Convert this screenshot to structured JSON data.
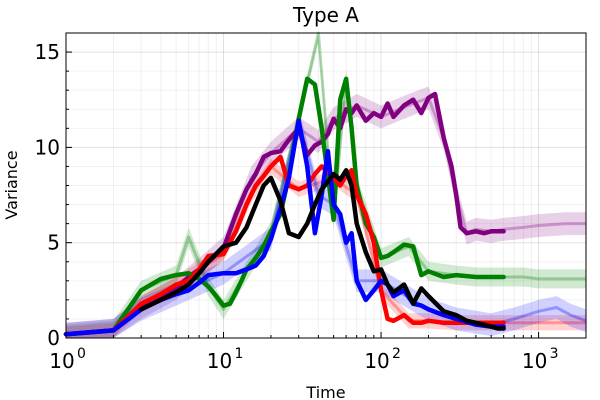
{
  "chart_data": {
    "type": "line",
    "title": "Type A",
    "xlabel": "Time",
    "ylabel": "Variance",
    "x_scale": "log10",
    "xlim": [
      1,
      2000
    ],
    "ylim": [
      0,
      16
    ],
    "x_ticks": [
      {
        "value": 1,
        "base": "10",
        "exp": "0"
      },
      {
        "value": 10,
        "base": "10",
        "exp": "1"
      },
      {
        "value": 100,
        "base": "10",
        "exp": "2"
      },
      {
        "value": 1000,
        "base": "10",
        "exp": "3"
      }
    ],
    "y_ticks": [
      0,
      5,
      10,
      15
    ],
    "grid": true,
    "series": [
      {
        "color": "#800080",
        "x": [
          1,
          2,
          3,
          4,
          5,
          6,
          7,
          8,
          10,
          12,
          14,
          16,
          18,
          20,
          23,
          26,
          30,
          34,
          38,
          42,
          46,
          50,
          55,
          60,
          65,
          70,
          80,
          90,
          100,
          110,
          120,
          140,
          160,
          180,
          200,
          220,
          250,
          280,
          300,
          320,
          350,
          400,
          450,
          500,
          600
        ],
        "y": [
          0.2,
          0.4,
          1.6,
          2.2,
          2.6,
          3.2,
          3.6,
          4.0,
          4.7,
          6.5,
          7.8,
          8.6,
          9.5,
          9.7,
          9.8,
          10.4,
          11.0,
          9.6,
          10.1,
          10.3,
          10.7,
          11.5,
          11.0,
          12.0,
          11.8,
          12.2,
          11.4,
          11.8,
          11.6,
          12.3,
          11.6,
          12.2,
          12.5,
          11.8,
          12.6,
          12.8,
          10.5,
          9.0,
          7.5,
          5.8,
          5.5,
          5.6,
          5.5,
          5.6,
          5.6
        ],
        "band": {
          "x": [
            1,
            2,
            3,
            5,
            7,
            10,
            15,
            20,
            30,
            40,
            50,
            70,
            100,
            150,
            200,
            250,
            300,
            350,
            400,
            500,
            600,
            800,
            1000,
            1500,
            2000
          ],
          "y": [
            0.2,
            0.4,
            1.6,
            2.6,
            3.6,
            4.7,
            8.4,
            9.7,
            11.0,
            10.3,
            11.5,
            12.2,
            11.6,
            12.2,
            12.6,
            10.5,
            7.5,
            5.5,
            5.7,
            5.6,
            5.7,
            5.8,
            5.9,
            6.0,
            6.0
          ],
          "spread": 0.6
        }
      },
      {
        "color": "#008000",
        "x": [
          1,
          2,
          3,
          4,
          5,
          6,
          7,
          8,
          9,
          10,
          11,
          12,
          13,
          14,
          15,
          16,
          18,
          20,
          23,
          26,
          30,
          34,
          38,
          42,
          46,
          50,
          55,
          60,
          65,
          70,
          80,
          90,
          100,
          110,
          120,
          140,
          160,
          180,
          200,
          250,
          300,
          400,
          500,
          600
        ],
        "y": [
          0.2,
          0.4,
          2.5,
          3.1,
          3.3,
          3.4,
          3.1,
          2.7,
          2.2,
          1.7,
          1.8,
          2.4,
          3.0,
          3.6,
          3.9,
          4.2,
          4.8,
          5.6,
          6.5,
          8.5,
          11.5,
          13.6,
          13.3,
          11.0,
          8.5,
          6.2,
          12.5,
          13.6,
          11.0,
          8.0,
          6.0,
          5.3,
          4.2,
          4.3,
          4.5,
          4.9,
          4.8,
          3.3,
          3.5,
          3.2,
          3.3,
          3.2,
          3.2,
          3.2
        ],
        "band": {
          "x": [
            1,
            2,
            3,
            5,
            6,
            8,
            10,
            15,
            20,
            30,
            40,
            50,
            60,
            70,
            100,
            150,
            200,
            300,
            400,
            500,
            600,
            800,
            1000,
            1500,
            2000
          ],
          "y": [
            0.2,
            0.4,
            2.5,
            3.3,
            5.3,
            2.7,
            1.5,
            3.9,
            5.6,
            11.5,
            16.0,
            6.2,
            13.6,
            8.0,
            4.2,
            4.8,
            3.5,
            3.3,
            3.2,
            3.2,
            3.2,
            3.2,
            3.1,
            3.1,
            3.1
          ],
          "spread": 0.5
        }
      },
      {
        "color": "#ff0000",
        "x": [
          1,
          2,
          3,
          4,
          5,
          6,
          7,
          8,
          10,
          12,
          14,
          16,
          18,
          20,
          23,
          26,
          30,
          34,
          38,
          42,
          46,
          50,
          55,
          60,
          65,
          70,
          80,
          90,
          100,
          110,
          120,
          140,
          160,
          180,
          200,
          250,
          300,
          400,
          500,
          600
        ],
        "y": [
          0.2,
          0.4,
          1.8,
          2.3,
          2.8,
          3.0,
          3.6,
          4.3,
          4.4,
          5.6,
          7.0,
          8.0,
          8.5,
          9.0,
          9.5,
          8.0,
          7.8,
          8.0,
          8.6,
          9.0,
          8.7,
          8.4,
          8.0,
          8.5,
          8.8,
          7.5,
          6.5,
          5.0,
          2.5,
          1.0,
          0.9,
          1.2,
          0.8,
          0.8,
          0.9,
          0.8,
          0.8,
          0.8,
          0.8,
          0.8
        ],
        "band": {
          "x": [
            1,
            2,
            3,
            5,
            10,
            15,
            20,
            30,
            50,
            70,
            100,
            150,
            200,
            300,
            500,
            700,
            1000,
            1500,
            2000
          ],
          "y": [
            0.2,
            0.4,
            1.8,
            2.8,
            4.4,
            7.5,
            9.0,
            7.8,
            8.4,
            7.5,
            2.5,
            0.9,
            0.9,
            0.8,
            0.8,
            0.8,
            0.8,
            0.8,
            0.8
          ],
          "spread": 0.4
        }
      },
      {
        "color": "#0000ff",
        "x": [
          1,
          2,
          3,
          4,
          5,
          6,
          7,
          8,
          10,
          12,
          14,
          16,
          18,
          20,
          23,
          26,
          30,
          34,
          38,
          42,
          46,
          50,
          55,
          60,
          65,
          70,
          80,
          90,
          100,
          110,
          120,
          140,
          160,
          180,
          200,
          250,
          300,
          400,
          500,
          600
        ],
        "y": [
          0.2,
          0.4,
          1.5,
          2.0,
          2.3,
          2.5,
          2.9,
          3.3,
          3.4,
          3.4,
          3.6,
          3.8,
          4.3,
          5.2,
          6.8,
          8.4,
          11.4,
          9.0,
          5.5,
          7.5,
          9.8,
          7.0,
          6.5,
          5.0,
          5.5,
          3.0,
          2.0,
          2.5,
          3.0,
          2.8,
          2.2,
          2.5,
          1.8,
          1.7,
          1.5,
          1.2,
          1.0,
          0.7,
          0.6,
          0.6
        ],
        "band": {
          "x": [
            1,
            2,
            3,
            5,
            10,
            20,
            30,
            40,
            50,
            70,
            100,
            200,
            300,
            500,
            700,
            1000,
            1300,
            1600,
            2000
          ],
          "y": [
            0.2,
            0.4,
            1.5,
            2.3,
            3.4,
            5.2,
            11.4,
            7.5,
            7.0,
            3.0,
            3.0,
            1.5,
            1.0,
            0.7,
            1.0,
            1.4,
            1.6,
            1.2,
            0.9
          ],
          "spread": 0.6
        }
      },
      {
        "color": "#000000",
        "x": [
          3,
          4,
          5,
          6,
          7,
          8,
          10,
          12,
          14,
          16,
          18,
          20,
          23,
          26,
          30,
          34,
          38,
          42,
          46,
          50,
          55,
          60,
          65,
          70,
          80,
          90,
          100,
          110,
          120,
          140,
          160,
          180,
          200,
          250,
          300,
          350,
          400,
          450,
          500,
          550,
          600
        ],
        "y": [
          1.5,
          2.0,
          2.4,
          2.8,
          3.4,
          4.0,
          4.8,
          5.0,
          5.8,
          7.0,
          8.0,
          8.4,
          7.2,
          5.5,
          5.3,
          6.0,
          7.0,
          7.8,
          8.2,
          8.6,
          8.3,
          8.8,
          8.0,
          6.0,
          4.5,
          3.5,
          3.6,
          2.8,
          2.4,
          2.8,
          1.8,
          2.6,
          2.2,
          1.4,
          1.2,
          0.9,
          0.8,
          0.7,
          0.6,
          0.5,
          0.5
        ]
      }
    ]
  }
}
